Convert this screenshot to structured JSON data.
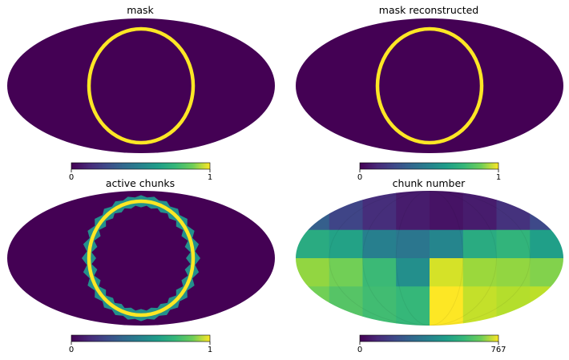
{
  "chart_data": [
    {
      "type": "heatmap",
      "projection": "mollweide",
      "title": "mask",
      "colormap": "viridis",
      "colorbar": {
        "min_label": "0",
        "max_label": "1",
        "vmin": 0,
        "vmax": 1
      },
      "features": [
        {
          "kind": "ring",
          "value": 1,
          "rim_chunks": false
        }
      ],
      "background_value": 0
    },
    {
      "type": "heatmap",
      "projection": "mollweide",
      "title": "mask reconstructed",
      "colormap": "viridis",
      "colorbar": {
        "min_label": "0",
        "max_label": "1",
        "vmin": 0,
        "vmax": 1
      },
      "features": [
        {
          "kind": "ring",
          "value": 1,
          "rim_chunks": false
        }
      ],
      "background_value": 0
    },
    {
      "type": "heatmap",
      "projection": "mollweide",
      "title": "active chunks",
      "colormap": "viridis",
      "colorbar": {
        "min_label": "0",
        "max_label": "1",
        "vmin": 0,
        "vmax": 1
      },
      "features": [
        {
          "kind": "ring",
          "value": 1,
          "rim_chunks": true,
          "chunk_value": 0.5
        }
      ],
      "background_value": 0
    },
    {
      "type": "heatmap",
      "projection": "mollweide",
      "title": "chunk number",
      "colormap": "viridis",
      "colorbar": {
        "min_label": "0",
        "max_label": "767",
        "vmin": 0,
        "vmax": 767
      },
      "chunks": [
        {
          "row": "top",
          "col": 0,
          "value": 230
        },
        {
          "row": "top",
          "col": 1,
          "value": 160
        },
        {
          "row": "top",
          "col": 2,
          "value": 100
        },
        {
          "row": "top",
          "col": 3,
          "value": 60
        },
        {
          "row": "top",
          "col": 4,
          "value": 40
        },
        {
          "row": "top",
          "col": 5,
          "value": 60
        },
        {
          "row": "top",
          "col": 6,
          "value": 110
        },
        {
          "row": "top",
          "col": 7,
          "value": 170
        },
        {
          "row": "upper",
          "col": 0,
          "value": 470
        },
        {
          "row": "upper",
          "col": 1,
          "value": 440
        },
        {
          "row": "upper",
          "col": 2,
          "value": 330
        },
        {
          "row": "upper",
          "col": 3,
          "value": 300
        },
        {
          "row": "upper",
          "col": 4,
          "value": 350
        },
        {
          "row": "upper",
          "col": 5,
          "value": 470
        },
        {
          "row": "upper",
          "col": 6,
          "value": 500
        },
        {
          "row": "upper",
          "col": 7,
          "value": 430
        },
        {
          "row": "lower",
          "col": 0,
          "value": 640
        },
        {
          "row": "lower",
          "col": 1,
          "value": 600
        },
        {
          "row": "lower",
          "col": 2,
          "value": 520
        },
        {
          "row": "lower",
          "col": 3,
          "value": 380
        },
        {
          "row": "lower",
          "col": 4,
          "value": 720
        },
        {
          "row": "lower",
          "col": 5,
          "value": 650
        },
        {
          "row": "lower",
          "col": 6,
          "value": 640
        },
        {
          "row": "lower",
          "col": 7,
          "value": 620
        },
        {
          "row": "bottom",
          "col": 0,
          "value": 600
        },
        {
          "row": "bottom",
          "col": 1,
          "value": 560
        },
        {
          "row": "bottom",
          "col": 2,
          "value": 530
        },
        {
          "row": "bottom",
          "col": 3,
          "value": 510
        },
        {
          "row": "bottom",
          "col": 4,
          "value": 767
        },
        {
          "row": "bottom",
          "col": 5,
          "value": 700
        },
        {
          "row": "bottom",
          "col": 6,
          "value": 680
        },
        {
          "row": "bottom",
          "col": 7,
          "value": 690
        }
      ]
    }
  ]
}
